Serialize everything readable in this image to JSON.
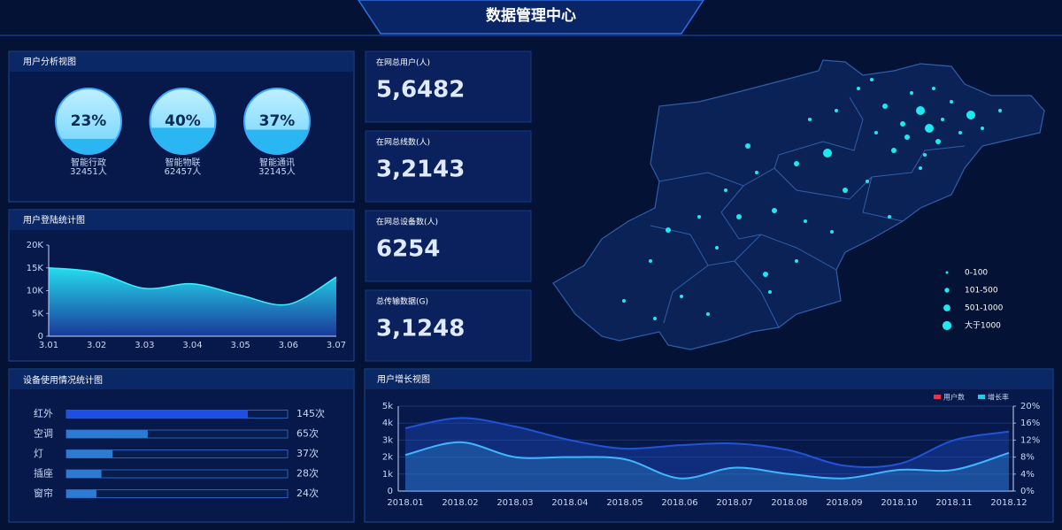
{
  "header": {
    "title": "数据管理中心"
  },
  "stats": [
    {
      "label": "在网总用户(人)",
      "value": "5,6482"
    },
    {
      "label": "在网总线数(人)",
      "value": "3,2143"
    },
    {
      "label": "在网总设备数(人)",
      "value": "6254"
    },
    {
      "label": "总传输数据(G)",
      "value": "3,1248"
    }
  ],
  "map": {
    "legend": [
      "0-100",
      "101-500",
      "501-1000",
      "大于1000"
    ]
  },
  "chart_data": [
    {
      "type": "gauge",
      "title": "用户分析视图",
      "categories": [
        "智能行政",
        "智能物联",
        "智能通讯"
      ],
      "values": [
        23,
        40,
        37
      ],
      "value_labels": [
        "23%",
        "40%",
        "37%"
      ],
      "sublabels": [
        "32451人",
        "62457人",
        "32145人"
      ]
    },
    {
      "type": "area",
      "title": "用户登陆统计图",
      "categories": [
        "3.01",
        "3.02",
        "3.03",
        "3.04",
        "3.05",
        "3.06",
        "3.07"
      ],
      "values": [
        15000,
        14000,
        10500,
        11500,
        9000,
        7000,
        13000
      ],
      "color": "#3ef0ff",
      "ylim": [
        0,
        20000
      ],
      "yticks": [
        0,
        {
          "value": 5000,
          "label": "5K"
        },
        {
          "value": 10000,
          "label": "10K"
        },
        {
          "value": 15000,
          "label": "15K"
        },
        {
          "value": 20000,
          "label": "20K"
        }
      ]
    },
    {
      "type": "hbar",
      "title": "设备使用情况统计图",
      "categories": [
        "红外",
        "空调",
        "灯",
        "插座",
        "窗帘"
      ],
      "values": [
        145,
        65,
        37,
        28,
        24
      ],
      "value_labels": [
        "145次",
        "65次",
        "37次",
        "28次",
        "24次"
      ],
      "color": "#1d5fd8"
    },
    {
      "type": "line",
      "title": "用户增长视图",
      "categories": [
        "2018.01",
        "2018.02",
        "2018.03",
        "2018.04",
        "2018.05",
        "2018.06",
        "2018.07",
        "2018.08",
        "2018.09",
        "2018.10",
        "2018.11",
        "2018.12"
      ],
      "series": [
        {
          "name": "用户数",
          "color": "#e8334a",
          "line_color": "#2153d6",
          "values": [
            3700,
            4300,
            3800,
            3000,
            2500,
            2700,
            2800,
            2400,
            1500,
            1600,
            3000,
            3500
          ]
        },
        {
          "name": "增长率",
          "color": "#27c8e8",
          "line_color": "#3fb6ff",
          "axis": "y2",
          "values": [
            8.5,
            11.5,
            8,
            8,
            7.5,
            3,
            5.5,
            4,
            3,
            5,
            5,
            9
          ]
        }
      ],
      "ylim": [
        0,
        5000
      ],
      "yticks": [
        0,
        {
          "value": 1000,
          "label": "1k"
        },
        {
          "value": 2000,
          "label": "2k"
        },
        {
          "value": 3000,
          "label": "3k"
        },
        {
          "value": 4000,
          "label": "4k"
        },
        {
          "value": 5000,
          "label": "5k"
        }
      ],
      "y2lim": [
        0,
        20
      ],
      "y2ticks": [
        {
          "value": 0,
          "label": "0%"
        },
        {
          "value": 4,
          "label": "4%"
        },
        {
          "value": 8,
          "label": "8%"
        },
        {
          "value": 12,
          "label": "12%"
        },
        {
          "value": 16,
          "label": "16%"
        },
        {
          "value": 20,
          "label": "20%"
        }
      ],
      "grid": true
    }
  ]
}
